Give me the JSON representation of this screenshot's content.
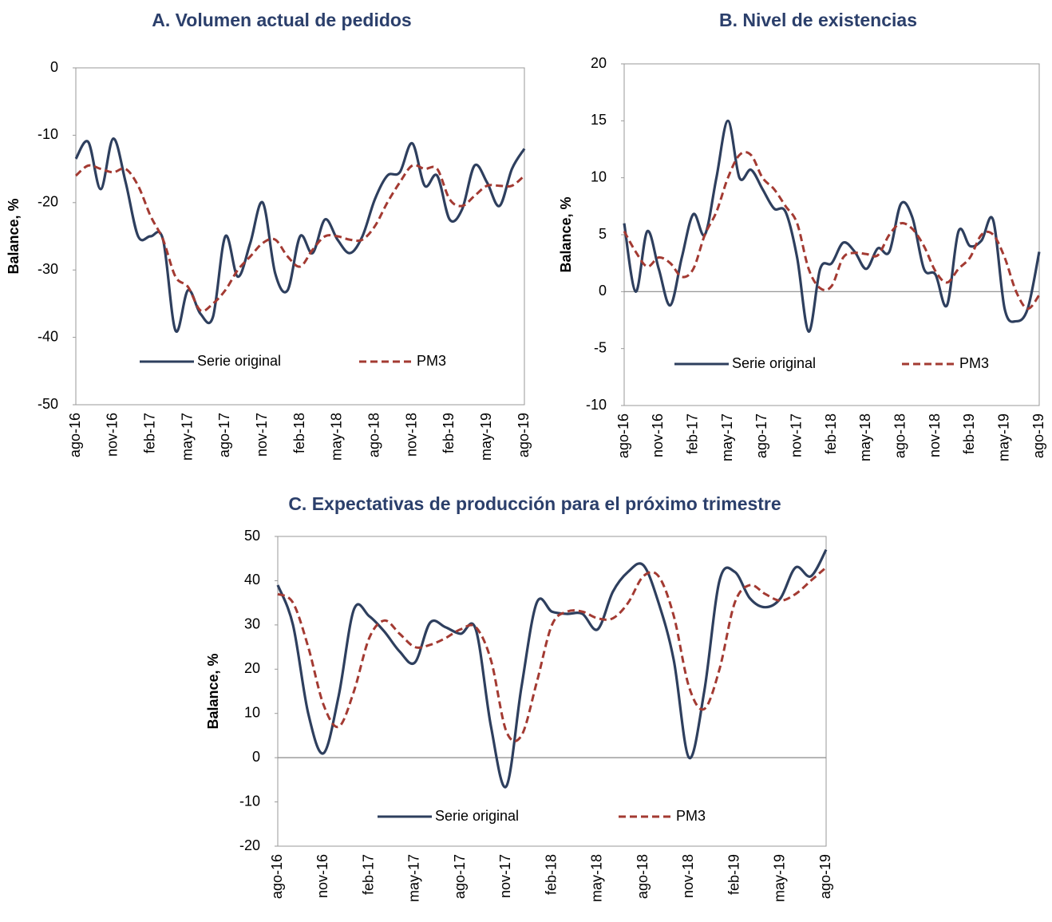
{
  "chart_data": [
    {
      "type": "line",
      "title": "A.  Volumen actual de pedidos",
      "y_label": "Balance, %",
      "categories": [
        "ago-16",
        null,
        null,
        "nov-16",
        null,
        null,
        "feb-17",
        null,
        null,
        "may-17",
        null,
        null,
        "ago-17",
        null,
        null,
        "nov-17",
        null,
        null,
        "feb-18",
        null,
        null,
        "may-18",
        null,
        null,
        "ago-18",
        null,
        null,
        "nov-18",
        null,
        null,
        "feb-19",
        null,
        null,
        "may-19",
        null,
        null,
        "ago-19"
      ],
      "series": [
        {
          "name": "Serie original",
          "color": "#2e3f5e",
          "dashed": false,
          "values": [
            -13.5,
            -11,
            -18,
            -10.5,
            -17,
            -25,
            -25,
            -25.5,
            -39,
            -33,
            -36.5,
            -37,
            -25,
            -31,
            -26,
            -20,
            -30.5,
            -33,
            -25,
            -27.5,
            -22.5,
            -25.5,
            -27.5,
            -25,
            -19.5,
            -16,
            -15.5,
            -11.2,
            -17.5,
            -16,
            -22.5,
            -21,
            -14.5,
            -17,
            -20.5,
            -15,
            -12
          ]
        },
        {
          "name": "PM3",
          "color": "#a33a32",
          "dashed": true,
          "values": [
            -16,
            -14.5,
            -15,
            -15.5,
            -15,
            -17.5,
            -22,
            -25.5,
            -31,
            -32.5,
            -36,
            -35,
            -33,
            -30,
            -28,
            -26,
            -25.5,
            -28,
            -29.5,
            -27,
            -25,
            -25,
            -25.5,
            -25.5,
            -23.5,
            -20,
            -17,
            -14.5,
            -15,
            -15,
            -19.5,
            -20.5,
            -19,
            -17.5,
            -17.5,
            -17.5,
            -16
          ]
        }
      ],
      "ylim": [
        -50,
        0
      ],
      "yticks": [
        -50,
        -40,
        -30,
        -20,
        -10,
        0
      ],
      "zero_line": false,
      "legend": "bottom"
    },
    {
      "type": "line",
      "title": "B.  Nivel de existencias",
      "y_label": "Balance, %",
      "categories": [
        "ago-16",
        null,
        null,
        "nov-16",
        null,
        null,
        "feb-17",
        null,
        null,
        "may-17",
        null,
        null,
        "ago-17",
        null,
        null,
        "nov-17",
        null,
        null,
        "feb-18",
        null,
        null,
        "may-18",
        null,
        null,
        "ago-18",
        null,
        null,
        "nov-18",
        null,
        null,
        "feb-19",
        null,
        null,
        "may-19",
        null,
        null,
        "ago-19"
      ],
      "series": [
        {
          "name": "Serie original",
          "color": "#2e3f5e",
          "dashed": false,
          "values": [
            6,
            0,
            5.3,
            2,
            -1.2,
            3,
            6.8,
            5,
            10,
            15,
            10,
            10.7,
            9,
            7.3,
            7,
            3,
            -3.5,
            2,
            2.5,
            4.3,
            3.5,
            2,
            3.8,
            3.5,
            7.7,
            6.5,
            2,
            1.5,
            -1.2,
            5.3,
            4,
            4.5,
            6.3,
            -1.5,
            -2.6,
            -1.5,
            3.5
          ]
        },
        {
          "name": "PM3",
          "color": "#a33a32",
          "dashed": true,
          "values": [
            5.3,
            3.5,
            2.2,
            3,
            2.5,
            1.3,
            2,
            5,
            7,
            10,
            12,
            12,
            10,
            9,
            7.5,
            6,
            2,
            0.3,
            0.5,
            3,
            3.4,
            3.3,
            3.2,
            5,
            6,
            5.5,
            4,
            1.8,
            0.8,
            2,
            3,
            5,
            5,
            3,
            0,
            -1.5,
            -0.3
          ]
        }
      ],
      "ylim": [
        -10,
        20
      ],
      "yticks": [
        -10,
        -5,
        0,
        5,
        10,
        15,
        20
      ],
      "zero_line": true,
      "legend": "bottom"
    },
    {
      "type": "line",
      "title": "C.  Expectativas de producción para el próximo trimestre",
      "y_label": "Balance, %",
      "categories": [
        "ago-16",
        null,
        null,
        "nov-16",
        null,
        null,
        "feb-17",
        null,
        null,
        "may-17",
        null,
        null,
        "ago-17",
        null,
        null,
        "nov-17",
        null,
        null,
        "feb-18",
        null,
        null,
        "may-18",
        null,
        null,
        "ago-18",
        null,
        null,
        "nov-18",
        null,
        null,
        "feb-19",
        null,
        null,
        "may-19",
        null,
        null,
        "ago-19"
      ],
      "series": [
        {
          "name": "Serie original",
          "color": "#2e3f5e",
          "dashed": false,
          "values": [
            39,
            30,
            10,
            1,
            14,
            33.5,
            32,
            28.5,
            24,
            21.5,
            30.5,
            29.5,
            28,
            29,
            7,
            -6.5,
            16,
            35,
            33,
            32.5,
            32.5,
            29,
            37.5,
            42,
            43.5,
            35,
            22,
            0,
            15,
            40,
            42,
            36,
            34,
            36,
            43,
            41,
            47
          ]
        },
        {
          "name": "PM3",
          "color": "#a33a32",
          "dashed": true,
          "values": [
            37,
            35,
            25,
            12,
            7,
            15,
            27,
            31,
            28,
            25,
            25.5,
            27,
            29,
            29.5,
            22,
            6,
            5,
            17,
            30,
            33,
            33,
            31.5,
            31.5,
            35,
            41,
            41,
            32,
            16,
            11,
            20,
            35,
            39,
            37,
            35.5,
            37,
            40,
            43
          ]
        }
      ],
      "ylim": [
        -20,
        50
      ],
      "yticks": [
        -20,
        -10,
        0,
        10,
        20,
        30,
        40,
        50
      ],
      "zero_line": true,
      "legend": "bottom"
    }
  ]
}
